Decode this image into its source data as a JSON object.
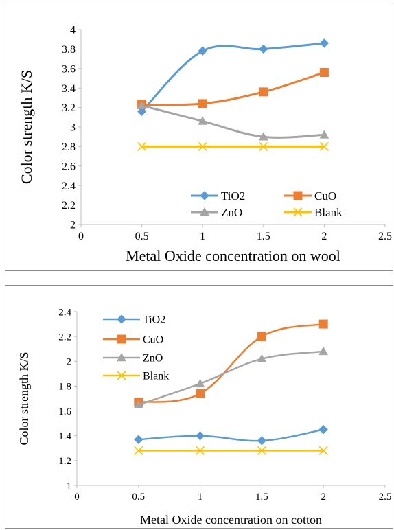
{
  "chart_data": [
    {
      "type": "line",
      "xlabel": "Metal Oxide concentration on wool",
      "ylabel": "Color strength K/S",
      "xlim": [
        0,
        2.5
      ],
      "ylim": [
        2,
        4
      ],
      "xticks": [
        "0",
        "0.5",
        "1",
        "1.5",
        "2",
        "2.5"
      ],
      "yticks": [
        "2",
        "2.2",
        "2.4",
        "2.6",
        "2.8",
        "3",
        "3.2",
        "3.4",
        "3.6",
        "3.8",
        "4"
      ],
      "grid": false,
      "legend_placement": "bottom-right",
      "x": [
        0.5,
        1,
        1.5,
        2
      ],
      "series": [
        {
          "name": "TiO2",
          "values": [
            3.16,
            3.78,
            3.8,
            3.86
          ],
          "color": "#5B9BD5",
          "marker": "diamond"
        },
        {
          "name": "CuO",
          "values": [
            3.23,
            3.24,
            3.36,
            3.56
          ],
          "color": "#ED7D31",
          "marker": "square"
        },
        {
          "name": "ZnO",
          "values": [
            3.22,
            3.06,
            2.9,
            2.92
          ],
          "color": "#A5A5A5",
          "marker": "triangle"
        },
        {
          "name": "Blank",
          "values": [
            2.8,
            2.8,
            2.8,
            2.8
          ],
          "color": "#FFC000",
          "marker": "x"
        }
      ]
    },
    {
      "type": "line",
      "xlabel": "Metal Oxide concentration on cotton",
      "ylabel": "Color strength K/S",
      "xlim": [
        0,
        2.5
      ],
      "ylim": [
        1,
        2.4
      ],
      "xticks": [
        "0",
        "0.5",
        "1",
        "1.5",
        "2",
        "2.5"
      ],
      "yticks": [
        "1",
        "1.2",
        "1.4",
        "1.6",
        "1.8",
        "2",
        "2.2",
        "2.4"
      ],
      "grid": false,
      "legend_placement": "top-left",
      "x": [
        0.5,
        1,
        1.5,
        2
      ],
      "series": [
        {
          "name": "TiO2",
          "values": [
            1.37,
            1.4,
            1.36,
            1.45
          ],
          "color": "#5B9BD5",
          "marker": "diamond"
        },
        {
          "name": "CuO",
          "values": [
            1.67,
            1.74,
            2.2,
            2.3
          ],
          "color": "#ED7D31",
          "marker": "square"
        },
        {
          "name": "ZnO",
          "values": [
            1.65,
            1.82,
            2.02,
            2.08
          ],
          "color": "#A5A5A5",
          "marker": "triangle"
        },
        {
          "name": "Blank",
          "values": [
            1.28,
            1.28,
            1.28,
            1.28
          ],
          "color": "#FFC000",
          "marker": "x"
        }
      ]
    }
  ]
}
